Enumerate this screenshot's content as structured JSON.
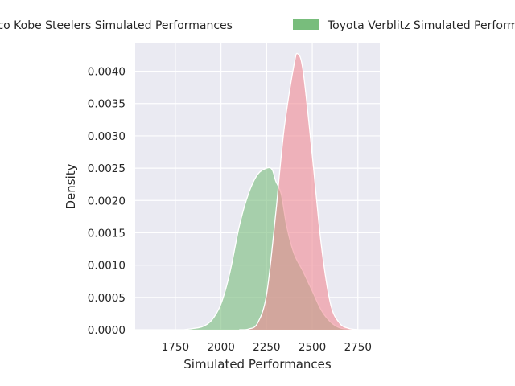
{
  "chart_data": {
    "type": "area",
    "title": "",
    "xlabel": "Simulated Performances",
    "ylabel": "Density",
    "xlim": [
      1530,
      2870
    ],
    "ylim": [
      0,
      0.00443
    ],
    "x_ticks": [
      1750,
      2000,
      2250,
      2500,
      2750
    ],
    "x_tick_labels": [
      "1750",
      "2000",
      "2250",
      "2500",
      "2750"
    ],
    "y_ticks": [
      0,
      0.0005,
      0.001,
      0.0015,
      0.002,
      0.0025,
      0.003,
      0.0035,
      0.004
    ],
    "y_tick_labels": [
      "0.0000",
      "0.0005",
      "0.0010",
      "0.0015",
      "0.0020",
      "0.0025",
      "0.0030",
      "0.0035",
      "0.0040"
    ],
    "grid": true,
    "legend_position": "top, above plot",
    "series": [
      {
        "name": "Kobelco Kobe Steelers Simulated Performances",
        "color": "#f08a94",
        "stacked_on": "Toyota Verblitz Simulated Performances",
        "x": [
          2100,
          2150,
          2200,
          2250,
          2300,
          2320,
          2350,
          2400,
          2420,
          2450,
          2500,
          2550,
          2600,
          2650,
          2700,
          2750
        ],
        "values": [
          0,
          1e-05,
          0.0001,
          0.00055,
          0.0018,
          0.0024,
          0.0032,
          0.0041,
          0.00427,
          0.004,
          0.0027,
          0.0013,
          0.0004,
          0.0001,
          2e-05,
          0
        ]
      },
      {
        "name": "Toyota Verblitz Simulated Performances",
        "color": "#78bd7c",
        "x": [
          1800,
          1850,
          1900,
          1950,
          2000,
          2050,
          2100,
          2150,
          2200,
          2250,
          2280,
          2300,
          2330,
          2360,
          2400,
          2450,
          2500,
          2550,
          2600,
          2650,
          2700,
          2750
        ],
        "values": [
          0,
          2e-05,
          5e-05,
          0.00015,
          0.0004,
          0.0009,
          0.0016,
          0.0021,
          0.0024,
          0.0025,
          0.00248,
          0.0023,
          0.0021,
          0.0016,
          0.00118,
          0.0009,
          0.0006,
          0.0003,
          0.00012,
          3e-05,
          1e-05,
          0
        ]
      }
    ]
  }
}
